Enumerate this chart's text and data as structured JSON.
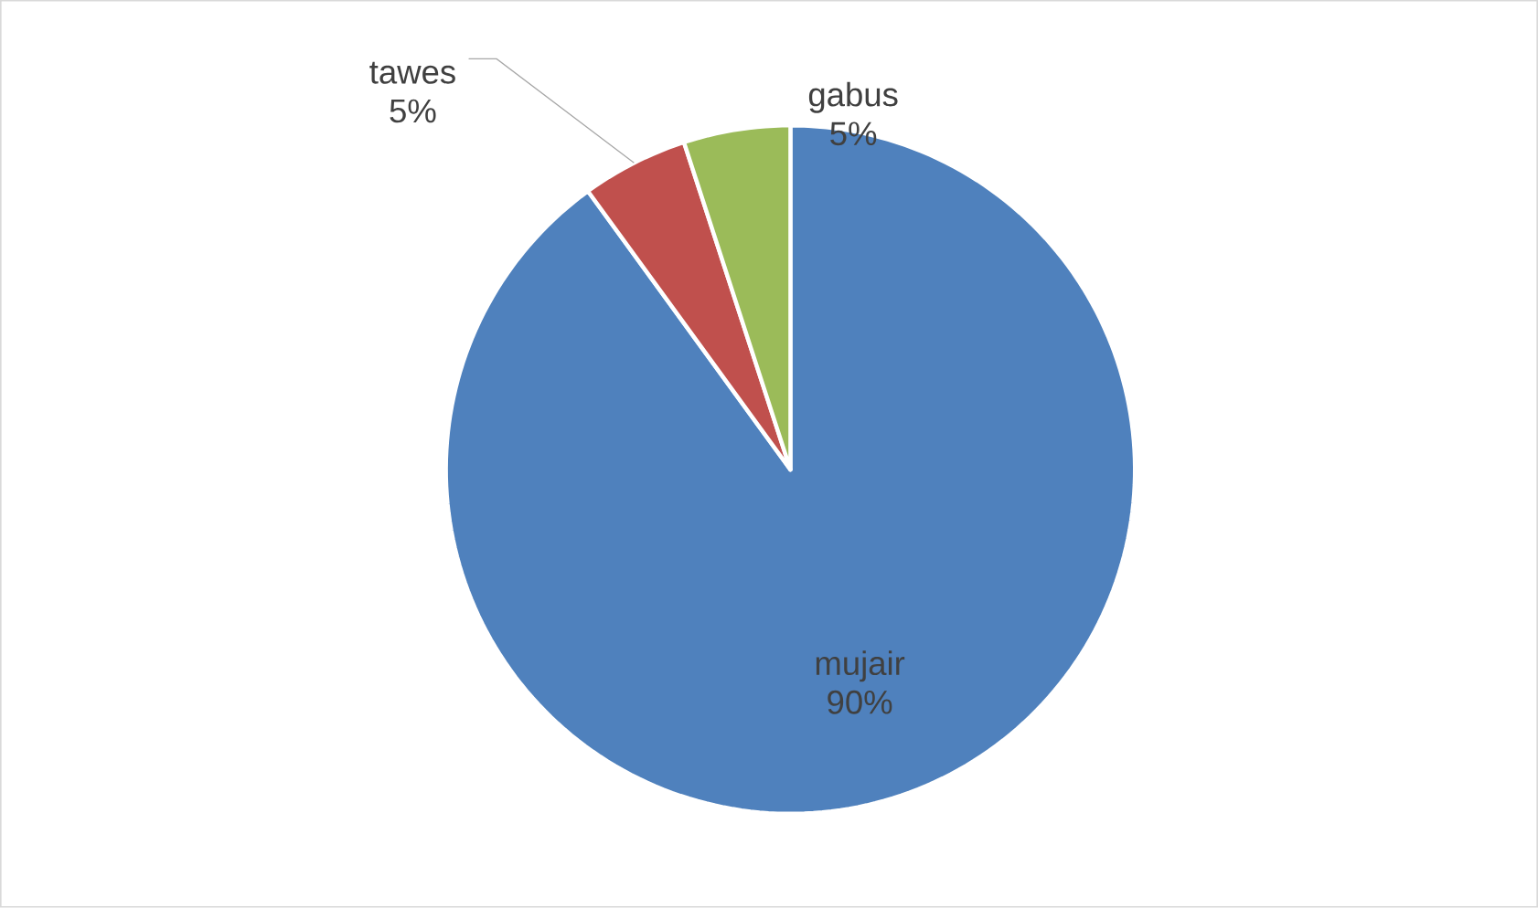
{
  "chart_data": {
    "type": "pie",
    "categories": [
      "mujair",
      "tawes",
      "gabus"
    ],
    "values": [
      90,
      5,
      5
    ],
    "value_labels": [
      "90%",
      "5%",
      "5%"
    ],
    "colors": [
      "#4f81bd",
      "#c0504d",
      "#9bbb59"
    ]
  }
}
